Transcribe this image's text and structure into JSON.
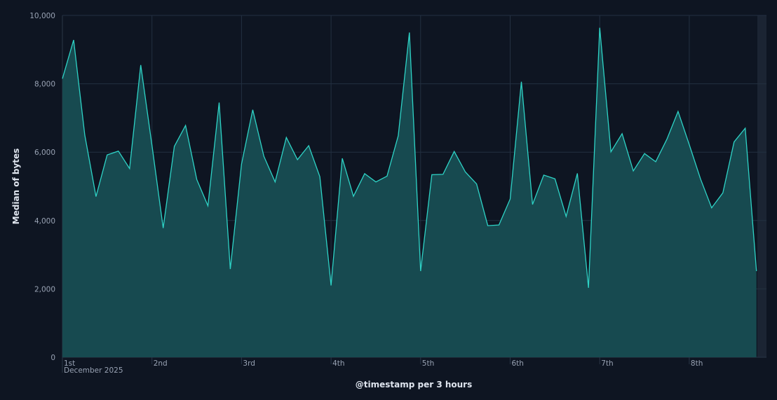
{
  "chart_data": {
    "type": "area",
    "title": "",
    "xlabel": "@timestamp per 3 hours",
    "ylabel": "Median of bytes",
    "ylim": [
      0,
      10000
    ],
    "yticks": [
      "0",
      "2,000",
      "4,000",
      "6,000",
      "8,000",
      "10,000"
    ],
    "ytick_values": [
      0,
      2000,
      4000,
      6000,
      8000,
      10000
    ],
    "xticks": [
      "1st",
      "2nd",
      "3rd",
      "4th",
      "5th",
      "6th",
      "7th",
      "8th"
    ],
    "xtick_sublabel": "December 2025",
    "interval_hours": 3,
    "grid": true,
    "colors": {
      "line": "#2ed3c6",
      "fill": "#174a50",
      "background": "#0e1522",
      "grid": "#233041"
    },
    "series": [
      {
        "values": [
          8150,
          9280,
          6500,
          4700,
          5920,
          6030,
          5520,
          8550,
          6200,
          3780,
          6170,
          6780,
          5200,
          4430,
          7450,
          2580,
          5650,
          7240,
          5880,
          5130,
          6430,
          5780,
          6190,
          5280,
          2100,
          5820,
          4710,
          5370,
          5130,
          5300,
          6480,
          9500,
          2520,
          5340,
          5350,
          6020,
          5420,
          5070,
          3850,
          3870,
          4630,
          8060,
          4470,
          5330,
          5220,
          4120,
          5380,
          2030,
          9640,
          6010,
          6540,
          5450,
          5960,
          5720,
          6380,
          7190,
          6220,
          5220,
          4370,
          4810,
          6300,
          6700,
          2520
        ]
      }
    ]
  }
}
